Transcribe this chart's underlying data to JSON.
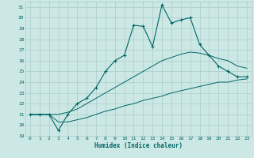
{
  "xlabel": "Humidex (Indice chaleur)",
  "ylabel": "",
  "bg_color": "#cce8e4",
  "grid_color": "#aacccc",
  "line_color": "#006666",
  "xlim": [
    -0.5,
    23.5
  ],
  "ylim": [
    19,
    31.5
  ],
  "yticks": [
    19,
    20,
    21,
    22,
    23,
    24,
    25,
    26,
    27,
    28,
    29,
    30,
    31
  ],
  "xticks": [
    0,
    1,
    2,
    3,
    4,
    5,
    6,
    7,
    8,
    9,
    10,
    11,
    12,
    13,
    14,
    15,
    16,
    17,
    18,
    19,
    20,
    21,
    22,
    23
  ],
  "main_line_x": [
    0,
    1,
    2,
    3,
    4,
    5,
    6,
    7,
    8,
    9,
    10,
    11,
    12,
    13,
    14,
    15,
    16,
    17,
    18,
    19,
    20,
    21,
    22,
    23
  ],
  "main_line_y": [
    21.0,
    21.0,
    21.0,
    19.5,
    21.0,
    22.0,
    22.5,
    23.5,
    25.0,
    26.0,
    26.5,
    29.3,
    29.2,
    27.3,
    31.2,
    29.5,
    29.8,
    30.0,
    27.5,
    26.5,
    25.5,
    25.0,
    24.5,
    24.5
  ],
  "upper_line_x": [
    0,
    1,
    2,
    3,
    4,
    5,
    6,
    7,
    8,
    9,
    10,
    11,
    12,
    13,
    14,
    15,
    16,
    17,
    18,
    19,
    20,
    21,
    22,
    23
  ],
  "upper_line_y": [
    21.0,
    21.0,
    21.0,
    21.0,
    21.2,
    21.5,
    22.0,
    22.5,
    23.0,
    23.5,
    24.0,
    24.5,
    25.0,
    25.5,
    26.0,
    26.3,
    26.6,
    26.8,
    26.7,
    26.5,
    26.2,
    26.0,
    25.5,
    25.3
  ],
  "lower_line_x": [
    0,
    1,
    2,
    3,
    4,
    5,
    6,
    7,
    8,
    9,
    10,
    11,
    12,
    13,
    14,
    15,
    16,
    17,
    18,
    19,
    20,
    21,
    22,
    23
  ],
  "lower_line_y": [
    21.0,
    21.0,
    21.0,
    20.3,
    20.3,
    20.5,
    20.7,
    21.0,
    21.3,
    21.5,
    21.8,
    22.0,
    22.3,
    22.5,
    22.7,
    23.0,
    23.2,
    23.4,
    23.6,
    23.8,
    24.0,
    24.0,
    24.2,
    24.3
  ]
}
